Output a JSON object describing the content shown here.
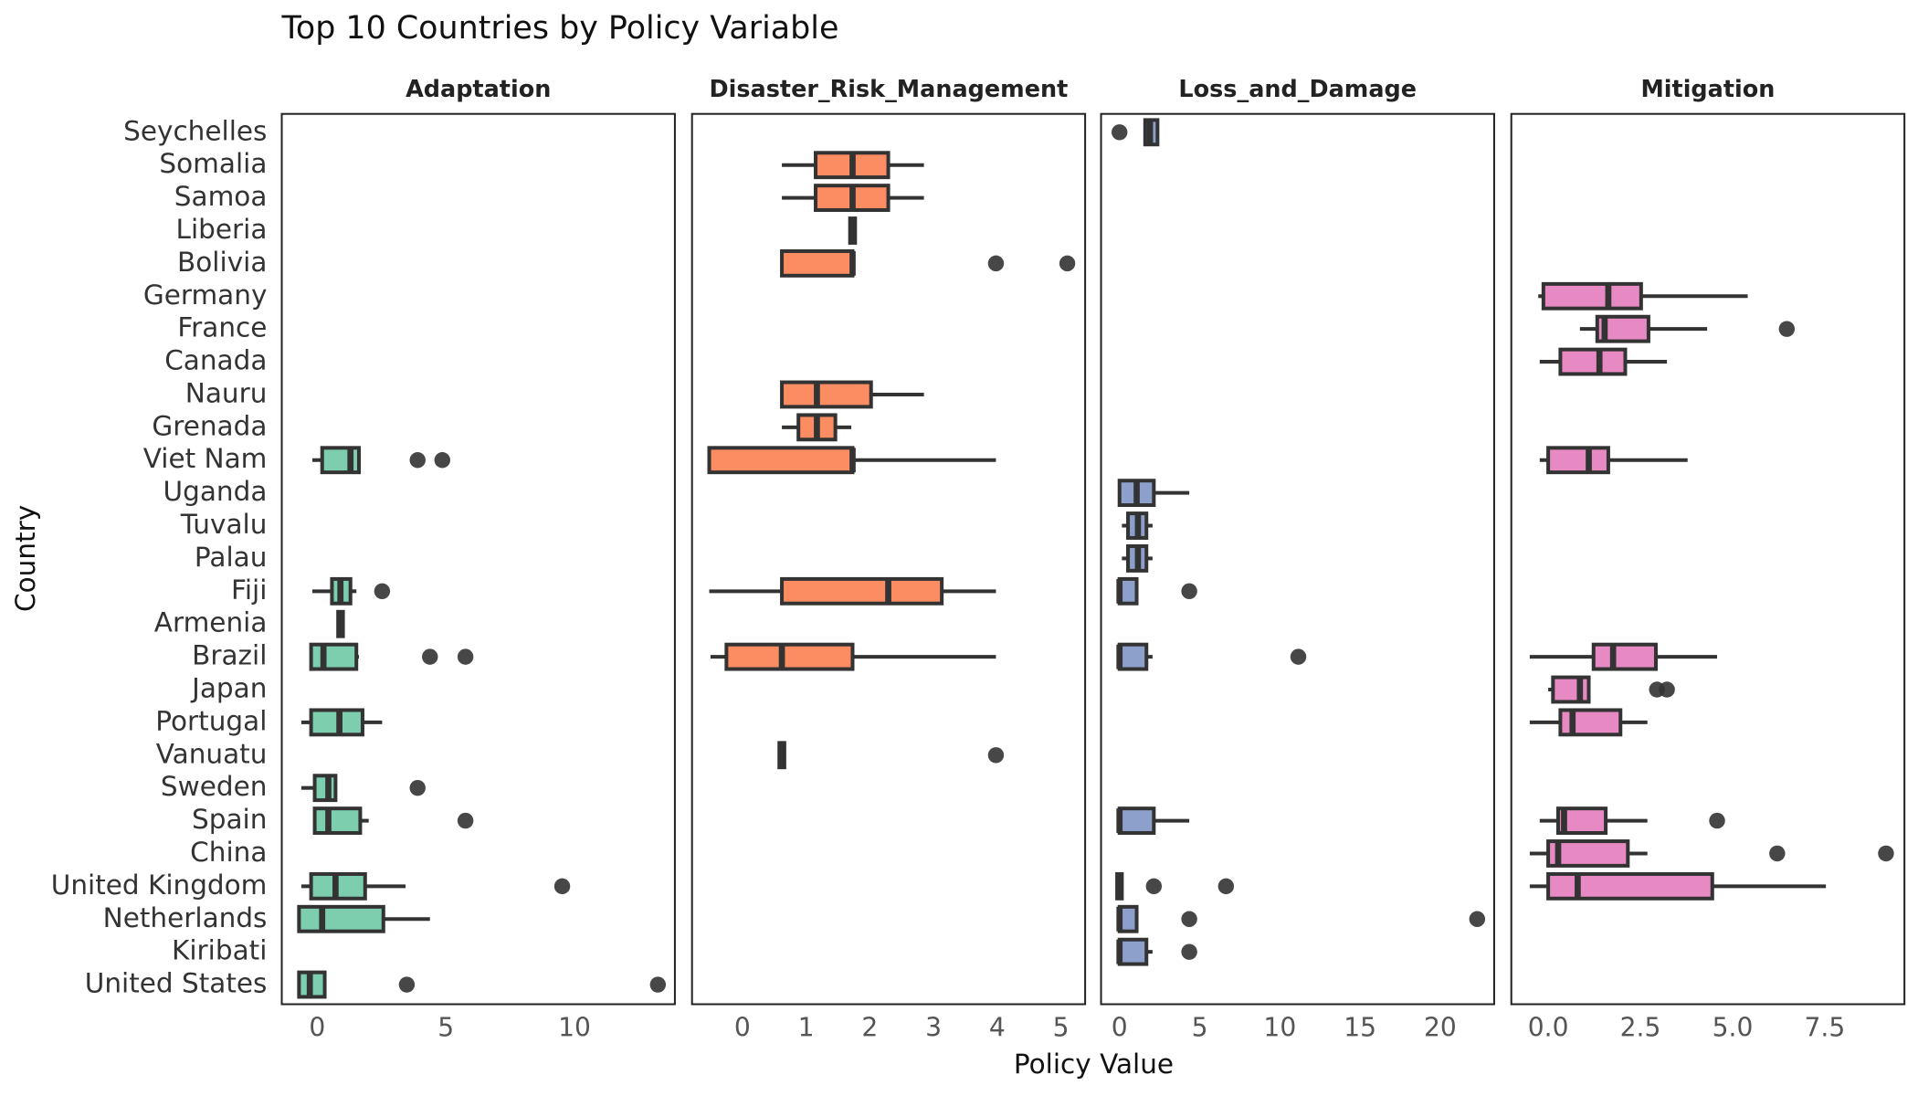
{
  "chart_data": {
    "type": "boxplot",
    "title": "Top 10 Countries by Policy Variable",
    "x_label": "Policy Value",
    "y_label": "Country",
    "categories": [
      "Seychelles",
      "Somalia",
      "Samoa",
      "Liberia",
      "Bolivia",
      "Germany",
      "France",
      "Canada",
      "Nauru",
      "Grenada",
      "Viet Nam",
      "Uganda",
      "Tuvalu",
      "Palau",
      "Fiji",
      "Armenia",
      "Brazil",
      "Japan",
      "Portugal",
      "Vanuatu",
      "Sweden",
      "Spain",
      "China",
      "United Kingdom",
      "Netherlands",
      "Kiribati",
      "United States"
    ],
    "panels": [
      {
        "name": "Adaptation",
        "color": "#7dcdaf",
        "xlim": [
          -1.38,
          13.9
        ],
        "xticks": [
          0,
          5,
          10
        ],
        "boxes": [
          null,
          null,
          null,
          null,
          null,
          null,
          null,
          null,
          null,
          null,
          {
            "whislo": -0.19,
            "q1": 0.19,
            "med": 1.29,
            "q3": 1.62,
            "whishi": 1.62,
            "fliers": [
              3.9,
              4.86
            ]
          },
          null,
          null,
          null,
          {
            "whislo": -0.19,
            "q1": 0.57,
            "med": 0.9,
            "q3": 1.29,
            "whishi": 1.52,
            "fliers": [
              2.52
            ]
          },
          {
            "whislo": 0.81,
            "q1": 0.81,
            "med": 0.9,
            "q3": 1.0,
            "whishi": 1.0
          },
          {
            "whislo": -0.24,
            "q1": -0.24,
            "med": 0.24,
            "q3": 1.52,
            "whishi": 1.62,
            "fliers": [
              4.38,
              5.76
            ]
          },
          null,
          {
            "whislo": -0.62,
            "q1": -0.24,
            "med": 0.86,
            "q3": 1.76,
            "whishi": 2.52
          },
          null,
          {
            "whislo": -0.62,
            "q1": -0.1,
            "med": 0.43,
            "q3": 0.71,
            "whishi": 0.71,
            "fliers": [
              3.9
            ]
          },
          {
            "whislo": -0.1,
            "q1": -0.1,
            "med": 0.43,
            "q3": 1.67,
            "whishi": 2.0,
            "fliers": [
              5.76
            ]
          },
          null,
          {
            "whislo": -0.62,
            "q1": -0.24,
            "med": 0.71,
            "q3": 1.86,
            "whishi": 3.43,
            "fliers": [
              9.52
            ]
          },
          {
            "whislo": -0.71,
            "q1": -0.71,
            "med": 0.19,
            "q3": 2.57,
            "whishi": 4.38
          },
          null,
          {
            "whislo": -0.71,
            "q1": -0.71,
            "med": -0.29,
            "q3": 0.29,
            "whishi": 0.29,
            "fliers": [
              3.48,
              13.24
            ]
          }
        ]
      },
      {
        "name": "Disaster_Risk_Management",
        "color": "#fc8d62",
        "xlim": [
          -0.79,
          5.38
        ],
        "xticks": [
          0,
          1,
          2,
          3,
          4,
          5
        ],
        "boxes": [
          null,
          {
            "whislo": 0.62,
            "q1": 1.15,
            "med": 1.73,
            "q3": 2.29,
            "whishi": 2.85
          },
          {
            "whislo": 0.62,
            "q1": 1.15,
            "med": 1.73,
            "q3": 2.29,
            "whishi": 2.85
          },
          {
            "whislo": 1.69,
            "q1": 1.69,
            "med": 1.73,
            "q3": 1.77,
            "whishi": 1.77
          },
          {
            "whislo": 0.62,
            "q1": 0.62,
            "med": 1.73,
            "q3": 1.73,
            "whishi": 1.73,
            "fliers": [
              3.98,
              5.1
            ]
          },
          null,
          null,
          null,
          {
            "whislo": 0.62,
            "q1": 0.62,
            "med": 1.17,
            "q3": 2.02,
            "whishi": 2.85
          },
          {
            "whislo": 0.62,
            "q1": 0.88,
            "med": 1.17,
            "q3": 1.46,
            "whishi": 1.71
          },
          {
            "whislo": -0.52,
            "q1": -0.52,
            "med": 1.73,
            "q3": 1.73,
            "whishi": 3.98
          },
          null,
          null,
          null,
          {
            "whislo": -0.52,
            "q1": 0.62,
            "med": 2.29,
            "q3": 3.13,
            "whishi": 3.98
          },
          null,
          {
            "whislo": -0.5,
            "q1": -0.25,
            "med": 0.62,
            "q3": 1.73,
            "whishi": 3.98
          },
          null,
          null,
          {
            "whislo": 0.58,
            "q1": 0.58,
            "med": 0.62,
            "q3": 0.66,
            "whishi": 0.66,
            "fliers": [
              3.98
            ]
          },
          null,
          null,
          null,
          null,
          null,
          null,
          null
        ]
      },
      {
        "name": "Loss_and_Damage",
        "color": "#8da0cb",
        "xlim": [
          -1.15,
          23.36
        ],
        "xticks": [
          0,
          5,
          10,
          15,
          20
        ],
        "boxes": [
          {
            "whislo": 1.6,
            "q1": 1.6,
            "med": 1.9,
            "q3": 2.37,
            "whishi": 2.37,
            "fliers": [
              0
            ]
          },
          null,
          null,
          null,
          null,
          null,
          null,
          null,
          null,
          null,
          null,
          {
            "whislo": 0,
            "q1": 0,
            "med": 1.07,
            "q3": 2.14,
            "whishi": 4.35
          },
          {
            "whislo": 0.15,
            "q1": 0.53,
            "med": 1.15,
            "q3": 1.68,
            "whishi": 2.06
          },
          {
            "whislo": 0.15,
            "q1": 0.53,
            "med": 1.15,
            "q3": 1.68,
            "whishi": 2.06
          },
          {
            "whislo": 0,
            "q1": 0,
            "med": 0,
            "q3": 1.07,
            "whishi": 1.07,
            "fliers": [
              4.35
            ]
          },
          null,
          {
            "whislo": 0,
            "q1": 0,
            "med": 0,
            "q3": 1.68,
            "whishi": 2.06,
            "fliers": [
              11.15
            ]
          },
          null,
          null,
          null,
          null,
          {
            "whislo": 0,
            "q1": 0,
            "med": 0,
            "q3": 2.14,
            "whishi": 4.35
          },
          null,
          {
            "whislo": -0.15,
            "q1": -0.15,
            "med": 0,
            "q3": 0.15,
            "whishi": 0.15,
            "fliers": [
              2.14,
              6.64
            ]
          },
          {
            "whislo": 0,
            "q1": 0,
            "med": 0,
            "q3": 1.07,
            "whishi": 1.07,
            "fliers": [
              4.35,
              22.3
            ]
          },
          {
            "whislo": 0,
            "q1": 0,
            "med": 0,
            "q3": 1.68,
            "whishi": 2.06,
            "fliers": [
              4.35
            ]
          },
          null
        ]
      },
      {
        "name": "Mitigation",
        "color": "#e78ac3",
        "xlim": [
          -1.0,
          9.66
        ],
        "xticks": [
          {
            "value": 0,
            "label": "0.0"
          },
          2.5,
          {
            "value": 5,
            "label": "5.0"
          },
          7.5
        ],
        "boxes": [
          null,
          null,
          null,
          null,
          null,
          {
            "whislo": -0.27,
            "q1": -0.13,
            "med": 1.63,
            "q3": 2.52,
            "whishi": 5.41
          },
          {
            "whislo": 0.86,
            "q1": 1.33,
            "med": 1.53,
            "q3": 2.72,
            "whishi": 4.31,
            "fliers": [
              6.47
            ]
          },
          {
            "whislo": -0.23,
            "q1": 0.33,
            "med": 1.39,
            "q3": 2.09,
            "whishi": 3.22
          },
          null,
          null,
          {
            "whislo": -0.23,
            "q1": 0,
            "med": 1.1,
            "q3": 1.63,
            "whishi": 3.78
          },
          null,
          null,
          null,
          null,
          null,
          {
            "whislo": -0.5,
            "q1": 1.23,
            "med": 1.76,
            "q3": 2.92,
            "whishi": 4.58
          },
          {
            "whislo": 0,
            "q1": 0.13,
            "med": 0.86,
            "q3": 1.1,
            "whishi": 1.1,
            "fliers": [
              2.95,
              3.22
            ]
          },
          {
            "whislo": -0.5,
            "q1": 0.33,
            "med": 0.66,
            "q3": 1.96,
            "whishi": 2.69
          },
          null,
          null,
          {
            "whislo": -0.23,
            "q1": 0.27,
            "med": 0.43,
            "q3": 1.56,
            "whishi": 2.69,
            "fliers": [
              4.58
            ]
          },
          {
            "whislo": -0.5,
            "q1": 0,
            "med": 0.27,
            "q3": 2.16,
            "whishi": 2.69,
            "fliers": [
              6.21,
              9.16
            ]
          },
          {
            "whislo": -0.5,
            "q1": 0,
            "med": 0.8,
            "q3": 4.45,
            "whishi": 7.53
          },
          null,
          null,
          null
        ]
      }
    ]
  }
}
